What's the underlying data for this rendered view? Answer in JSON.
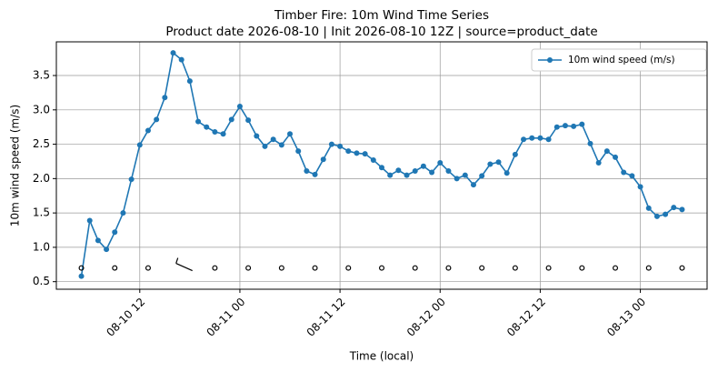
{
  "chart_data": {
    "type": "line",
    "title": "Timber Fire: 10m Wind Time Series",
    "subtitle": "Product date 2026-08-10 | Init 2026-08-10 12Z | source=product_date",
    "xlabel": "Time (local)",
    "ylabel": "10m wind speed (m/s)",
    "x": [
      "08-10 05",
      "08-10 06",
      "08-10 07",
      "08-10 08",
      "08-10 09",
      "08-10 10",
      "08-10 11",
      "08-10 12",
      "08-10 13",
      "08-10 14",
      "08-10 15",
      "08-10 16",
      "08-10 17",
      "08-10 18",
      "08-10 19",
      "08-10 20",
      "08-10 21",
      "08-10 22",
      "08-10 23",
      "08-11 00",
      "08-11 01",
      "08-11 02",
      "08-11 03",
      "08-11 04",
      "08-11 05",
      "08-11 06",
      "08-11 07",
      "08-11 08",
      "08-11 09",
      "08-11 10",
      "08-11 11",
      "08-11 12",
      "08-11 13",
      "08-11 14",
      "08-11 15",
      "08-11 16",
      "08-11 17",
      "08-11 18",
      "08-11 19",
      "08-11 20",
      "08-11 21",
      "08-11 22",
      "08-11 23",
      "08-12 00",
      "08-12 01",
      "08-12 02",
      "08-12 03",
      "08-12 04",
      "08-12 05",
      "08-12 06",
      "08-12 07",
      "08-12 08",
      "08-12 09",
      "08-12 10",
      "08-12 11",
      "08-12 12",
      "08-12 13",
      "08-12 14",
      "08-12 15",
      "08-12 16",
      "08-12 17",
      "08-12 18",
      "08-12 19",
      "08-12 20",
      "08-12 21",
      "08-12 22",
      "08-12 23",
      "08-13 00",
      "08-13 01",
      "08-13 02",
      "08-13 03",
      "08-13 04",
      "08-13 05"
    ],
    "series": [
      {
        "name": "10m wind speed (m/s)",
        "color": "#1f77b4",
        "values": [
          0.58,
          1.39,
          1.1,
          0.97,
          1.22,
          1.5,
          1.99,
          2.49,
          2.7,
          2.86,
          3.18,
          3.83,
          3.73,
          3.42,
          2.83,
          2.75,
          2.68,
          2.65,
          2.86,
          3.05,
          2.85,
          2.62,
          2.47,
          2.57,
          2.49,
          2.65,
          2.4,
          2.11,
          2.06,
          2.28,
          2.5,
          2.47,
          2.4,
          2.37,
          2.36,
          2.27,
          2.16,
          2.05,
          2.12,
          2.05,
          2.11,
          2.18,
          2.09,
          2.23,
          2.11,
          2.0,
          2.05,
          1.91,
          2.04,
          2.21,
          2.24,
          2.08,
          2.35,
          2.57,
          2.59,
          2.59,
          2.57,
          2.75,
          2.77,
          2.76,
          2.79,
          2.51,
          2.23,
          2.4,
          2.31,
          2.09,
          2.04,
          1.88,
          1.57,
          1.45,
          1.48,
          1.58,
          1.55
        ]
      }
    ],
    "xlim": [
      "08-10 02",
      "08-13 08"
    ],
    "xticks": [
      "08-10 12",
      "08-11 00",
      "08-11 12",
      "08-12 00",
      "08-12 12",
      "08-13 00"
    ],
    "ylim": [
      0.39,
      3.99
    ],
    "yticks": [
      0.5,
      {
        "value": 1,
        "label": "1.0"
      },
      1.5,
      {
        "value": 2,
        "label": "2.0"
      },
      2.5,
      {
        "value": 3,
        "label": "3.0"
      },
      3.5
    ],
    "grid": true,
    "legend": "upper right",
    "wind_barbs": {
      "y": 0.7,
      "x": [
        "08-10 05",
        "08-10 09",
        "08-10 13",
        "08-10 17",
        "08-10 21",
        "08-11 01",
        "08-11 05",
        "08-11 09",
        "08-11 13",
        "08-11 17",
        "08-11 21",
        "08-12 01",
        "08-12 05",
        "08-12 09",
        "08-12 13",
        "08-12 17",
        "08-12 21",
        "08-13 01",
        "08-13 05"
      ],
      "calm": [
        true,
        true,
        true,
        false,
        true,
        true,
        true,
        true,
        true,
        true,
        true,
        true,
        true,
        true,
        true,
        true,
        true,
        true,
        true
      ]
    }
  }
}
